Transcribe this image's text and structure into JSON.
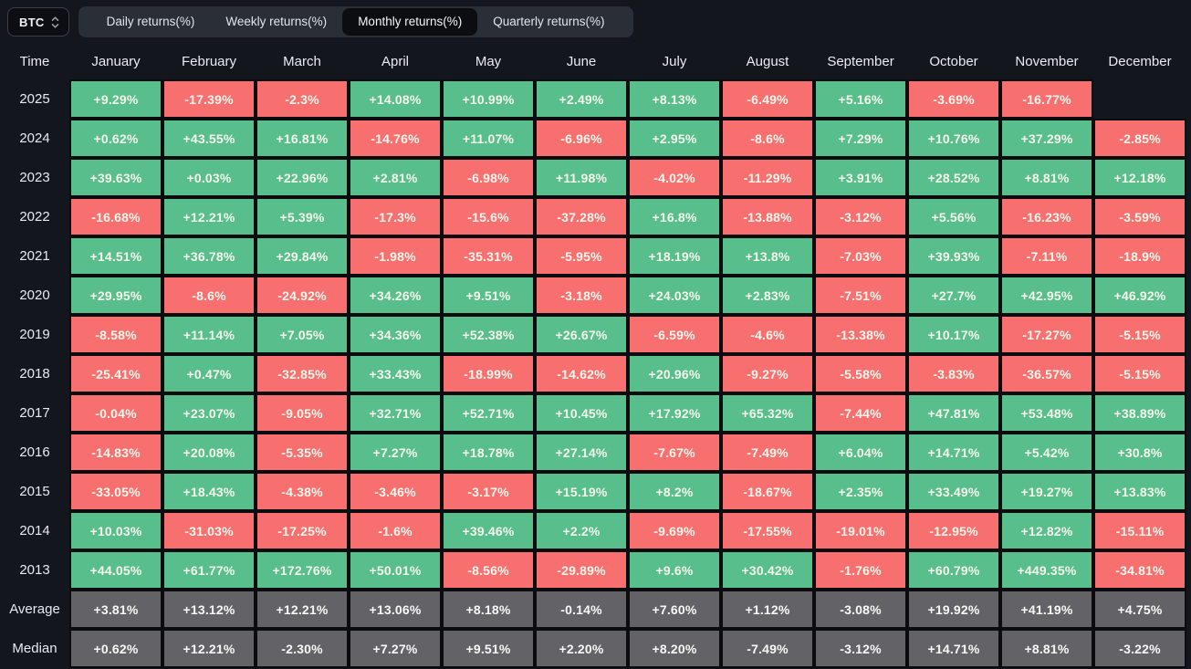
{
  "toolbar": {
    "symbol": "BTC",
    "tabs": [
      {
        "label": "Daily returns(%)",
        "active": false
      },
      {
        "label": "Weekly returns(%)",
        "active": false
      },
      {
        "label": "Monthly returns(%)",
        "active": true
      },
      {
        "label": "Quarterly returns(%)",
        "active": false
      }
    ]
  },
  "table": {
    "time_header": "Time",
    "months": [
      "January",
      "February",
      "March",
      "April",
      "May",
      "June",
      "July",
      "August",
      "September",
      "October",
      "November",
      "December"
    ],
    "rows": [
      {
        "label": "2025",
        "type": "year",
        "values": [
          "+9.29%",
          "-17.39%",
          "-2.3%",
          "+14.08%",
          "+10.99%",
          "+2.49%",
          "+8.13%",
          "-6.49%",
          "+5.16%",
          "-3.69%",
          "-16.77%",
          null
        ]
      },
      {
        "label": "2024",
        "type": "year",
        "values": [
          "+0.62%",
          "+43.55%",
          "+16.81%",
          "-14.76%",
          "+11.07%",
          "-6.96%",
          "+2.95%",
          "-8.6%",
          "+7.29%",
          "+10.76%",
          "+37.29%",
          "-2.85%"
        ]
      },
      {
        "label": "2023",
        "type": "year",
        "values": [
          "+39.63%",
          "+0.03%",
          "+22.96%",
          "+2.81%",
          "-6.98%",
          "+11.98%",
          "-4.02%",
          "-11.29%",
          "+3.91%",
          "+28.52%",
          "+8.81%",
          "+12.18%"
        ]
      },
      {
        "label": "2022",
        "type": "year",
        "values": [
          "-16.68%",
          "+12.21%",
          "+5.39%",
          "-17.3%",
          "-15.6%",
          "-37.28%",
          "+16.8%",
          "-13.88%",
          "-3.12%",
          "+5.56%",
          "-16.23%",
          "-3.59%"
        ]
      },
      {
        "label": "2021",
        "type": "year",
        "values": [
          "+14.51%",
          "+36.78%",
          "+29.84%",
          "-1.98%",
          "-35.31%",
          "-5.95%",
          "+18.19%",
          "+13.8%",
          "-7.03%",
          "+39.93%",
          "-7.11%",
          "-18.9%"
        ]
      },
      {
        "label": "2020",
        "type": "year",
        "values": [
          "+29.95%",
          "-8.6%",
          "-24.92%",
          "+34.26%",
          "+9.51%",
          "-3.18%",
          "+24.03%",
          "+2.83%",
          "-7.51%",
          "+27.7%",
          "+42.95%",
          "+46.92%"
        ]
      },
      {
        "label": "2019",
        "type": "year",
        "values": [
          "-8.58%",
          "+11.14%",
          "+7.05%",
          "+34.36%",
          "+52.38%",
          "+26.67%",
          "-6.59%",
          "-4.6%",
          "-13.38%",
          "+10.17%",
          "-17.27%",
          "-5.15%"
        ]
      },
      {
        "label": "2018",
        "type": "year",
        "values": [
          "-25.41%",
          "+0.47%",
          "-32.85%",
          "+33.43%",
          "-18.99%",
          "-14.62%",
          "+20.96%",
          "-9.27%",
          "-5.58%",
          "-3.83%",
          "-36.57%",
          "-5.15%"
        ]
      },
      {
        "label": "2017",
        "type": "year",
        "values": [
          "-0.04%",
          "+23.07%",
          "-9.05%",
          "+32.71%",
          "+52.71%",
          "+10.45%",
          "+17.92%",
          "+65.32%",
          "-7.44%",
          "+47.81%",
          "+53.48%",
          "+38.89%"
        ]
      },
      {
        "label": "2016",
        "type": "year",
        "values": [
          "-14.83%",
          "+20.08%",
          "-5.35%",
          "+7.27%",
          "+18.78%",
          "+27.14%",
          "-7.67%",
          "-7.49%",
          "+6.04%",
          "+14.71%",
          "+5.42%",
          "+30.8%"
        ]
      },
      {
        "label": "2015",
        "type": "year",
        "values": [
          "-33.05%",
          "+18.43%",
          "-4.38%",
          "-3.46%",
          "-3.17%",
          "+15.19%",
          "+8.2%",
          "-18.67%",
          "+2.35%",
          "+33.49%",
          "+19.27%",
          "+13.83%"
        ]
      },
      {
        "label": "2014",
        "type": "year",
        "values": [
          "+10.03%",
          "-31.03%",
          "-17.25%",
          "-1.6%",
          "+39.46%",
          "+2.2%",
          "-9.69%",
          "-17.55%",
          "-19.01%",
          "-12.95%",
          "+12.82%",
          "-15.11%"
        ]
      },
      {
        "label": "2013",
        "type": "year",
        "values": [
          "+44.05%",
          "+61.77%",
          "+172.76%",
          "+50.01%",
          "-8.56%",
          "-29.89%",
          "+9.6%",
          "+30.42%",
          "-1.76%",
          "+60.79%",
          "+449.35%",
          "-34.81%"
        ]
      },
      {
        "label": "Average",
        "type": "summary",
        "values": [
          "+3.81%",
          "+13.12%",
          "+12.21%",
          "+13.06%",
          "+8.18%",
          "-0.14%",
          "+7.60%",
          "+1.12%",
          "-3.08%",
          "+19.92%",
          "+41.19%",
          "+4.75%"
        ]
      },
      {
        "label": "Median",
        "type": "summary",
        "values": [
          "+0.62%",
          "+12.21%",
          "-2.30%",
          "+7.27%",
          "+9.51%",
          "+2.20%",
          "+8.20%",
          "-7.49%",
          "-3.12%",
          "+14.71%",
          "+8.81%",
          "-3.22%"
        ]
      }
    ]
  },
  "colors": {
    "positive": "#58BE8C",
    "negative": "#F7706F",
    "neutral": "#626267",
    "background": "#14161D",
    "gridline": "#0A0C10"
  }
}
